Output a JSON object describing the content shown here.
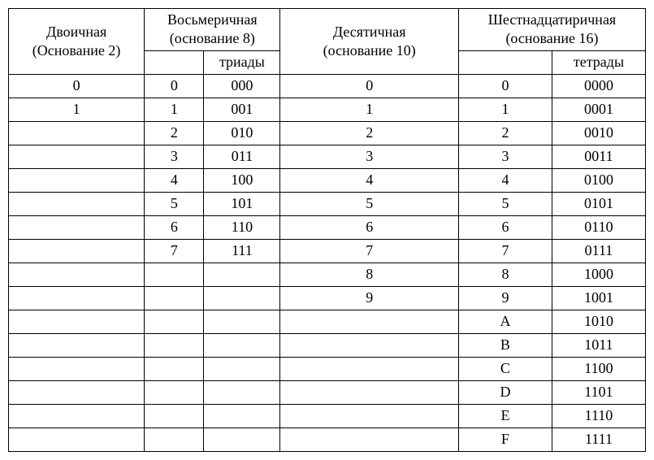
{
  "headers": {
    "binary": {
      "name": "Двоичная",
      "base": "(Основание 2)"
    },
    "octal": {
      "name": "Восьмеричная",
      "base": "(основание 8)",
      "sub2": "триады"
    },
    "decimal": {
      "name": "Десятичная",
      "base": "(основание 10)"
    },
    "hex": {
      "name": "Шестнадцатиричная",
      "base": "(основание 16)",
      "sub2": "тетрады"
    }
  },
  "rows": [
    {
      "bin": "0",
      "oct": "0",
      "triad": "000",
      "dec": "0",
      "hex": "0",
      "tetrad": "0000"
    },
    {
      "bin": "1",
      "oct": "1",
      "triad": "001",
      "dec": "1",
      "hex": "1",
      "tetrad": "0001"
    },
    {
      "bin": "",
      "oct": "2",
      "triad": "010",
      "dec": "2",
      "hex": "2",
      "tetrad": "0010"
    },
    {
      "bin": "",
      "oct": "3",
      "triad": "011",
      "dec": "3",
      "hex": "3",
      "tetrad": "0011"
    },
    {
      "bin": "",
      "oct": "4",
      "triad": "100",
      "dec": "4",
      "hex": "4",
      "tetrad": "0100"
    },
    {
      "bin": "",
      "oct": "5",
      "triad": "101",
      "dec": "5",
      "hex": "5",
      "tetrad": "0101"
    },
    {
      "bin": "",
      "oct": "6",
      "triad": "110",
      "dec": "6",
      "hex": "6",
      "tetrad": "0110"
    },
    {
      "bin": "",
      "oct": "7",
      "triad": "111",
      "dec": "7",
      "hex": "7",
      "tetrad": "0111"
    },
    {
      "bin": "",
      "oct": "",
      "triad": "",
      "dec": "8",
      "hex": "8",
      "tetrad": "1000"
    },
    {
      "bin": "",
      "oct": "",
      "triad": "",
      "dec": "9",
      "hex": "9",
      "tetrad": "1001"
    },
    {
      "bin": "",
      "oct": "",
      "triad": "",
      "dec": "",
      "hex": "A",
      "tetrad": "1010"
    },
    {
      "bin": "",
      "oct": "",
      "triad": "",
      "dec": "",
      "hex": "B",
      "tetrad": "1011"
    },
    {
      "bin": "",
      "oct": "",
      "triad": "",
      "dec": "",
      "hex": "C",
      "tetrad": "1100"
    },
    {
      "bin": "",
      "oct": "",
      "triad": "",
      "dec": "",
      "hex": "D",
      "tetrad": "1101"
    },
    {
      "bin": "",
      "oct": "",
      "triad": "",
      "dec": "",
      "hex": "E",
      "tetrad": "1110"
    },
    {
      "bin": "",
      "oct": "",
      "triad": "",
      "dec": "",
      "hex": "F",
      "tetrad": "1111"
    }
  ],
  "style": {
    "font_family": "Times New Roman",
    "font_size_pt": 14,
    "border_color": "#000000",
    "background_color": "#ffffff",
    "text_color": "#000000"
  }
}
